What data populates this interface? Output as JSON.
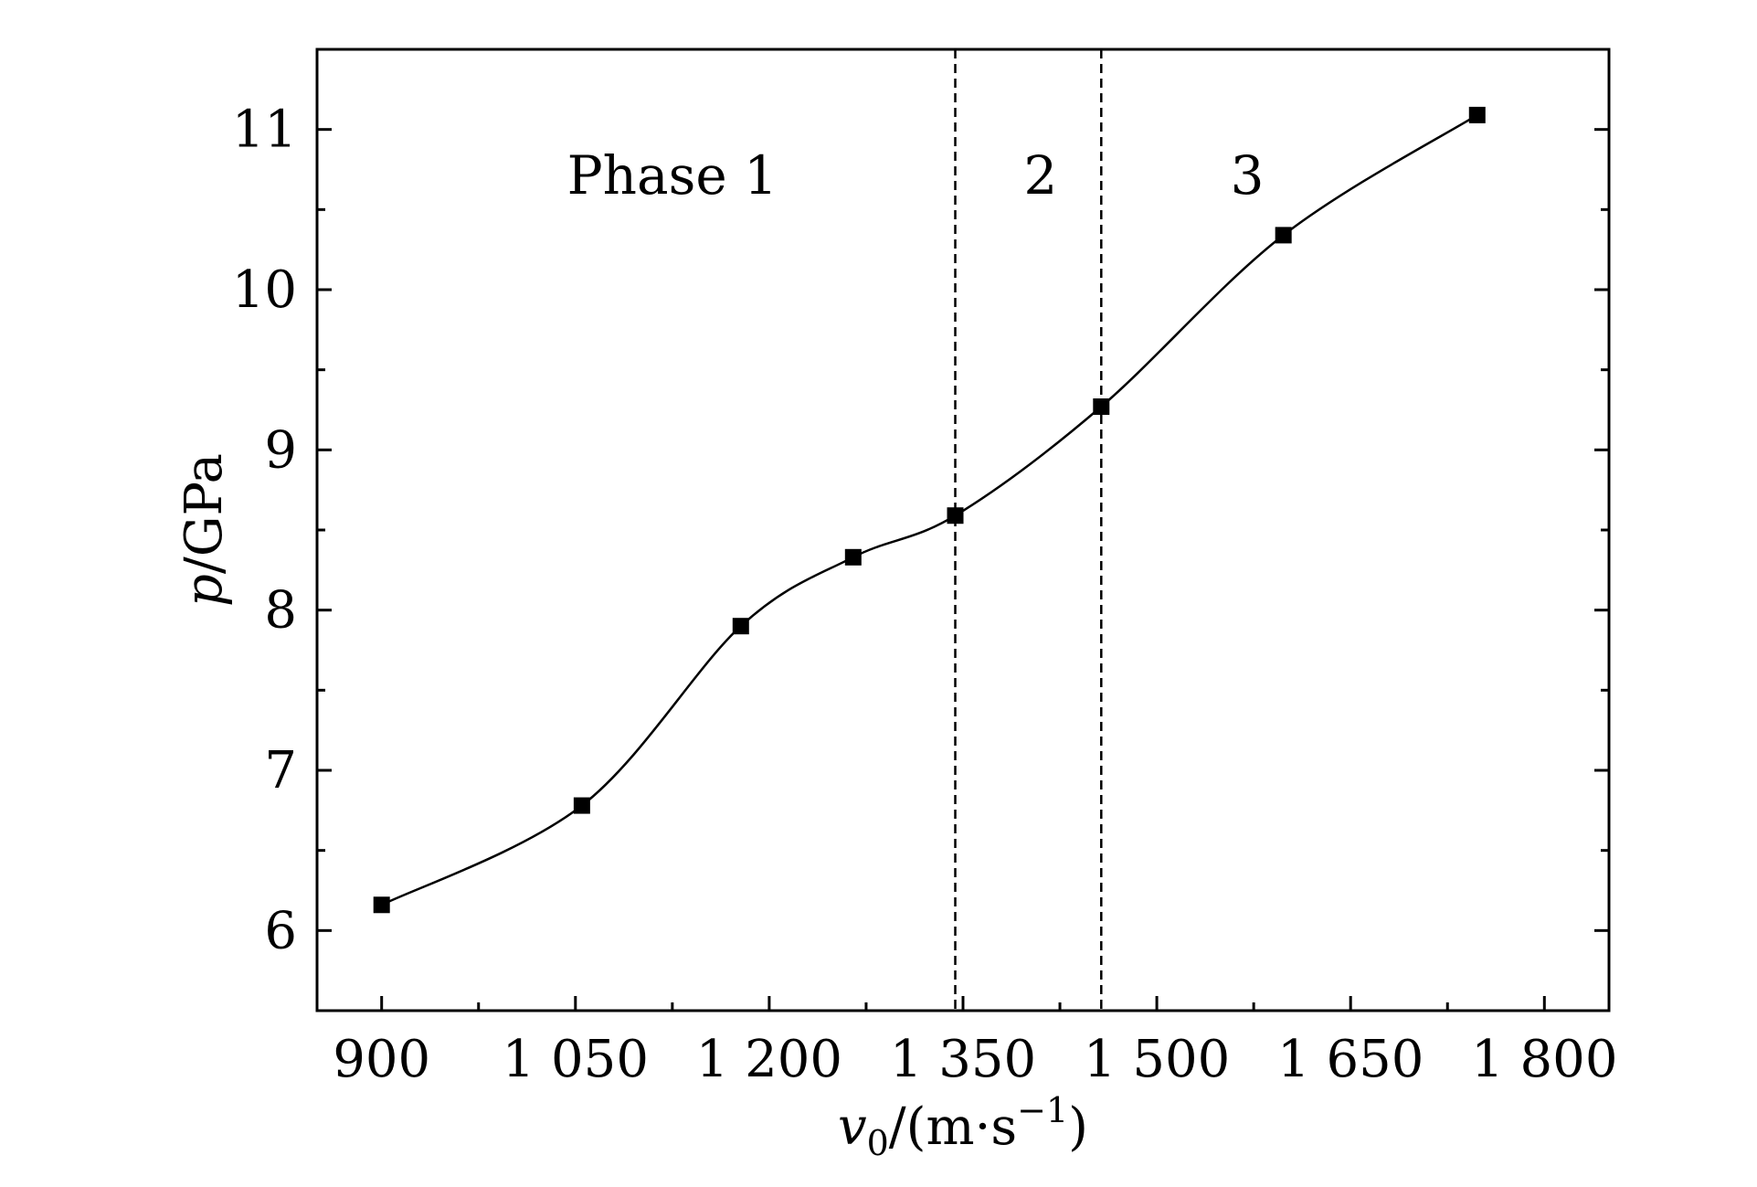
{
  "chart_data": {
    "type": "scatter",
    "title": "",
    "xlabel": {
      "var": "v",
      "sub": "0",
      "rest": "/(m·s",
      "sup": "−1",
      "close": ")"
    },
    "ylabel": {
      "var": "p",
      "rest": "/GPa"
    },
    "xlim": [
      850,
      1850
    ],
    "ylim": [
      5.5,
      11.5
    ],
    "x_ticks": [
      900,
      1050,
      1200,
      1350,
      1500,
      1650,
      1800
    ],
    "x_tick_labels": [
      "900",
      "1 050",
      "1 200",
      "1 350",
      "1 500",
      "1 650",
      "1 800"
    ],
    "x_minor_step": 75,
    "y_ticks": [
      6,
      7,
      8,
      9,
      10,
      11
    ],
    "y_tick_labels": [
      "6",
      "7",
      "8",
      "9",
      "10",
      "11"
    ],
    "y_minor_step": 0.5,
    "grid": false,
    "legend": "none",
    "series": [
      {
        "marker": "square",
        "color": "#000000",
        "smooth_line": true,
        "x": [
          900,
          1055,
          1178,
          1265,
          1344,
          1457,
          1598,
          1748
        ],
        "y": [
          6.16,
          6.78,
          7.9,
          8.33,
          8.59,
          9.27,
          10.34,
          11.09
        ]
      }
    ],
    "vlines": [
      {
        "x": 1344,
        "style": "dashed"
      },
      {
        "x": 1457,
        "style": "dashed"
      }
    ],
    "annotations": [
      {
        "text": "Phase 1",
        "x": 1125,
        "y": 10.6
      },
      {
        "text": "2",
        "x": 1410,
        "y": 10.6
      },
      {
        "text": "3",
        "x": 1570,
        "y": 10.6
      }
    ]
  }
}
